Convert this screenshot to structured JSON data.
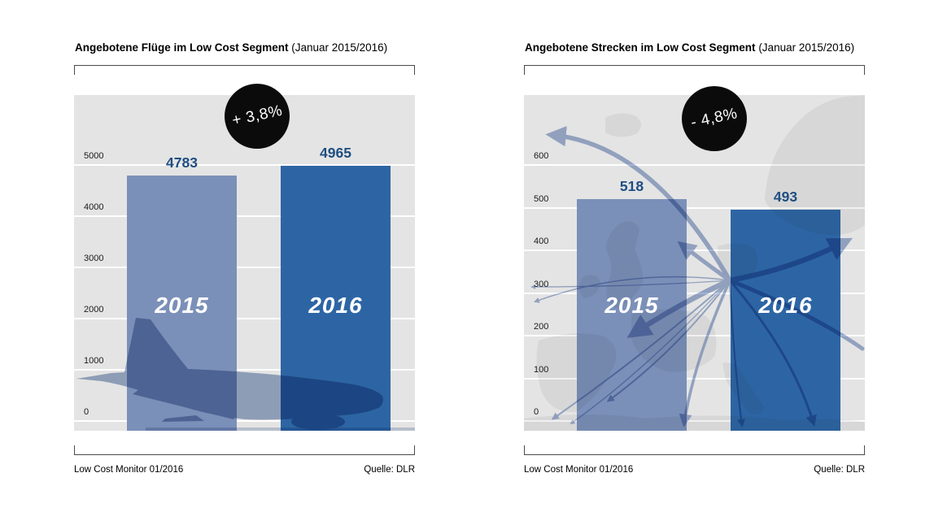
{
  "source_line": "Low Cost Monitor 01/2016",
  "source_credit": "Quelle: DLR",
  "colors": {
    "plot_background": "#e4e4e4",
    "gridline": "#ffffff",
    "bar_2015": "#7b90b8",
    "bar_2016": "#2d65a4",
    "value_label": "#1f4e82",
    "badge_background": "#0b0b0b",
    "badge_text": "#ffffff",
    "decor_blue": "#9fb0cc"
  },
  "chart_data": [
    {
      "type": "bar",
      "title": "Angebotene Flüge im Low Cost Segment",
      "title_note": "(Januar 2015/2016)",
      "badge": "+ 3,8%",
      "categories": [
        "2015",
        "2016"
      ],
      "values": [
        4783,
        4965
      ],
      "ylim": [
        0,
        5000
      ],
      "yticks": [
        0,
        1000,
        2000,
        3000,
        4000,
        5000
      ],
      "grid": true,
      "legend": "none",
      "decor": "airplane-silhouette",
      "footer_left": "Low Cost Monitor 01/2016",
      "footer_right": "Quelle: DLR"
    },
    {
      "type": "bar",
      "title": "Angebotene Strecken im Low Cost Segment",
      "title_note": "(Januar 2015/2016)",
      "badge": "- 4,8%",
      "categories": [
        "2015",
        "2016"
      ],
      "values": [
        518,
        493
      ],
      "ylim": [
        0,
        600
      ],
      "yticks": [
        0,
        100,
        200,
        300,
        400,
        500,
        600
      ],
      "grid": true,
      "legend": "none",
      "decor": "europe-map-route-arrows",
      "footer_left": "Low Cost Monitor 01/2016",
      "footer_right": "Quelle: DLR"
    }
  ]
}
